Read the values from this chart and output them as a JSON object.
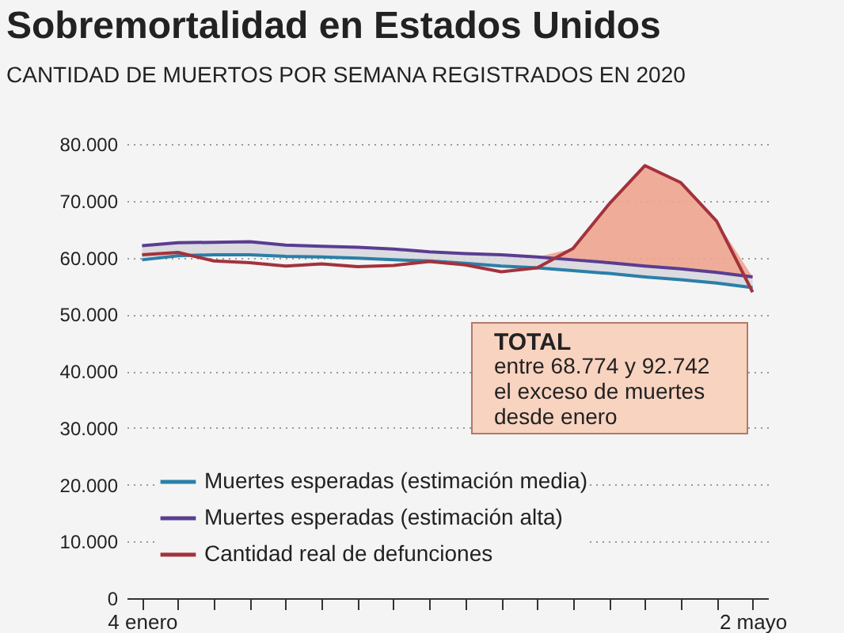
{
  "chart_data": {
    "type": "line",
    "title": "Sobremortalidad en Estados Unidos",
    "subtitle": "CANTIDAD DE MUERTOS POR SEMANA REGISTRADOS EN 2020",
    "x": [
      "2020-01-04",
      "2020-01-11",
      "2020-01-18",
      "2020-01-25",
      "2020-02-01",
      "2020-02-08",
      "2020-02-15",
      "2020-02-22",
      "2020-02-29",
      "2020-03-07",
      "2020-03-14",
      "2020-03-21",
      "2020-03-28",
      "2020-04-04",
      "2020-04-11",
      "2020-04-18",
      "2020-04-25",
      "2020-05-02"
    ],
    "series": [
      {
        "name": "Muertes esperadas (estimación media)",
        "color": "#2b7fa8",
        "values": [
          59600,
          60300,
          60500,
          60500,
          60200,
          60100,
          59900,
          59600,
          59400,
          59000,
          58500,
          58200,
          57700,
          57200,
          56600,
          56100,
          55500,
          54700
        ]
      },
      {
        "name": "Muertes esperadas (estimación alta)",
        "color": "#5a3d91",
        "values": [
          62100,
          62600,
          62700,
          62800,
          62200,
          62000,
          61800,
          61500,
          61000,
          60700,
          60500,
          60100,
          59600,
          59100,
          58500,
          58000,
          57400,
          56600
        ],
        "lower": [
          59600,
          60300,
          60500,
          60500,
          60200,
          60100,
          59900,
          59600,
          59400,
          59000,
          58500,
          58200,
          57700,
          57200,
          56600,
          56100,
          55500,
          54700
        ],
        "upper": [
          62100,
          62600,
          62700,
          62800,
          62200,
          62000,
          61800,
          61500,
          61000,
          60700,
          60500,
          60100,
          59600,
          59100,
          58500,
          58000,
          57400,
          56600
        ]
      },
      {
        "name": "Cantidad real de defunciones",
        "color": "#a3323c",
        "values": [
          60500,
          60900,
          59400,
          59100,
          58500,
          58900,
          58400,
          58600,
          59300,
          58700,
          57500,
          58200,
          61600,
          69400,
          76200,
          73200,
          66400,
          53900
        ],
        "lower": [
          62100,
          62600,
          62700,
          62800,
          62200,
          62000,
          61800,
          61500,
          61000,
          60700,
          60500,
          60100,
          59600,
          59100,
          58500,
          58000,
          57400,
          56600
        ],
        "upper": [
          62100,
          62600,
          62700,
          62800,
          62200,
          62000,
          61800,
          61500,
          61000,
          60700,
          60500,
          60100,
          61600,
          69400,
          76200,
          73200,
          66400,
          56600
        ]
      }
    ],
    "xlim": [
      "2020-01-01",
      "2020-05-05"
    ],
    "xticks": [
      {
        "value": "2020-01-04",
        "label": "4 enero"
      },
      {
        "value": "2020-01-11",
        "label": null
      },
      {
        "value": "2020-01-18",
        "label": null
      },
      {
        "value": "2020-01-25",
        "label": null
      },
      {
        "value": "2020-02-01",
        "label": null
      },
      {
        "value": "2020-02-08",
        "label": null
      },
      {
        "value": "2020-02-15",
        "label": null
      },
      {
        "value": "2020-02-22",
        "label": null
      },
      {
        "value": "2020-02-29",
        "label": null
      },
      {
        "value": "2020-03-07",
        "label": null
      },
      {
        "value": "2020-03-14",
        "label": null
      },
      {
        "value": "2020-03-21",
        "label": null
      },
      {
        "value": "2020-03-28",
        "label": null
      },
      {
        "value": "2020-04-04",
        "label": null
      },
      {
        "value": "2020-04-11",
        "label": null
      },
      {
        "value": "2020-04-18",
        "label": null
      },
      {
        "value": "2020-04-25",
        "label": null
      },
      {
        "value": "2020-05-02",
        "label": "2 mayo"
      }
    ],
    "ylim": [
      0,
      80000
    ],
    "yticks": [
      {
        "value": 0,
        "label": "0"
      },
      {
        "value": 10000,
        "label": "10.000"
      },
      {
        "value": 20000,
        "label": "20.000"
      },
      {
        "value": 30000,
        "label": "30.000"
      },
      {
        "value": 40000,
        "label": "40.000"
      },
      {
        "value": 50000,
        "label": "50.000"
      },
      {
        "value": 60000,
        "label": "60.000"
      },
      {
        "value": 70000,
        "label": "70.000"
      },
      {
        "value": 80000,
        "label": "80.000"
      }
    ],
    "grid": "y",
    "legend": "bottom left",
    "marker": "none",
    "line_style": "solid",
    "annotations": [
      "TOTAL",
      "entre 68.774 y 92.742",
      "el exceso de muertes",
      "desde enero"
    ]
  }
}
